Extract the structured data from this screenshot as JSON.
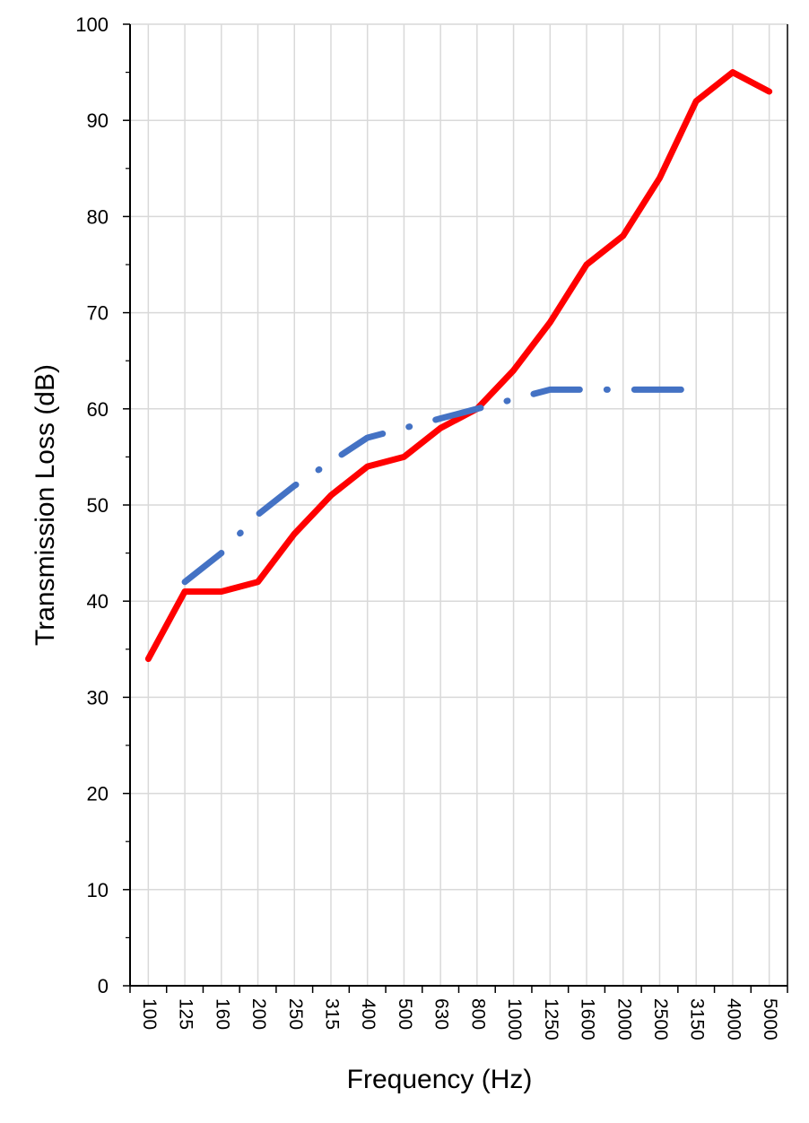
{
  "chart_data": {
    "type": "line",
    "title": "",
    "xlabel": "Frequency (Hz)",
    "ylabel": "Transmission Loss (dB)",
    "categories": [
      "100",
      "125",
      "160",
      "200",
      "250",
      "315",
      "400",
      "500",
      "630",
      "800",
      "1000",
      "1250",
      "1600",
      "2000",
      "2500",
      "3150",
      "4000",
      "5000"
    ],
    "ylim": [
      0,
      100
    ],
    "yticks": [
      "0",
      "10",
      "20",
      "30",
      "40",
      "50",
      "60",
      "70",
      "80",
      "90",
      "100"
    ],
    "grid": true,
    "legend": "none",
    "series": [
      {
        "color": "#ff0000",
        "style": "solid",
        "values": [
          34,
          41,
          41,
          42,
          47,
          51,
          54,
          55,
          58,
          60,
          64,
          69,
          75,
          78,
          84,
          92,
          95,
          93
        ]
      },
      {
        "color": "#4472c4",
        "style": "dash-dot",
        "values": [
          null,
          42,
          45,
          49,
          52,
          54.5,
          57,
          58,
          59,
          60,
          61,
          62,
          62,
          62,
          62,
          62,
          null,
          null
        ]
      }
    ]
  }
}
